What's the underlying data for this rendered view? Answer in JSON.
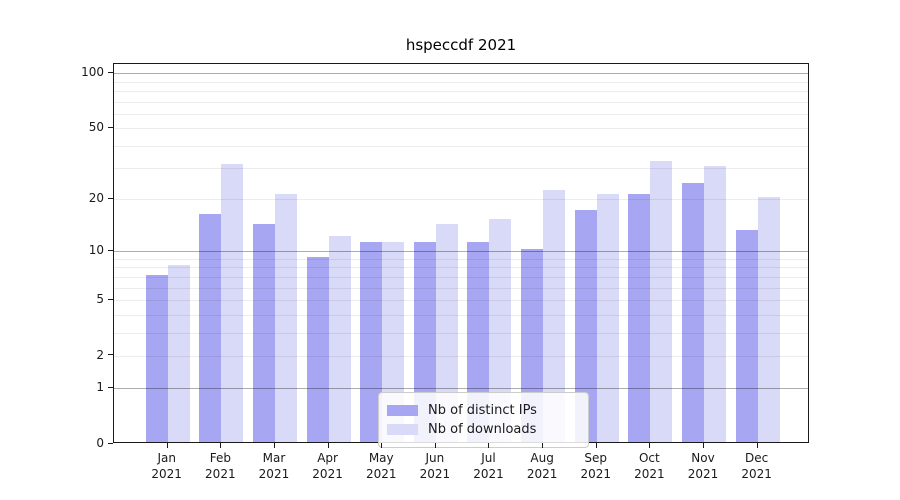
{
  "title": "hspeccdf 2021",
  "chart_data": {
    "type": "bar",
    "title": "hspeccdf 2021",
    "categories": [
      "Jan",
      "Feb",
      "Mar",
      "Apr",
      "May",
      "Jun",
      "Jul",
      "Aug",
      "Sep",
      "Oct",
      "Nov",
      "Dec"
    ],
    "year": "2021",
    "series": [
      {
        "name": "Nb of distinct IPs",
        "color": "#a6a6f2",
        "values": [
          7,
          16,
          14,
          9,
          11,
          11,
          11,
          10,
          17,
          21,
          24,
          13
        ]
      },
      {
        "name": "Nb of downloads",
        "color": "#d9d9f8",
        "values": [
          8,
          31,
          21,
          12,
          11,
          14,
          15,
          22,
          21,
          32,
          30,
          20
        ]
      }
    ],
    "xlabel": "",
    "ylabel": "",
    "y_ticks": [
      0,
      1,
      2,
      5,
      10,
      20,
      50,
      100
    ],
    "minor_gridlines": [
      3,
      4,
      6,
      7,
      8,
      9,
      30,
      40,
      60,
      70,
      80,
      90
    ],
    "major_gridlines": [
      1,
      10,
      100
    ],
    "scale": "log1p",
    "ylim": [
      0,
      112
    ],
    "grid": true,
    "legend_position": "lower center",
    "legend_labels": [
      "Nb of distinct IPs",
      "Nb of downloads"
    ]
  }
}
